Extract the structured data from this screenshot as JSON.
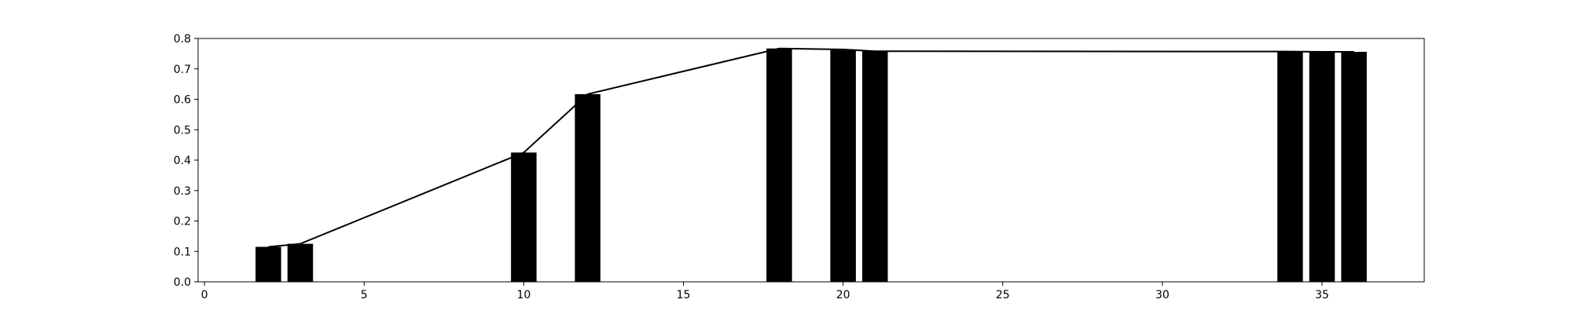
{
  "chart_data": {
    "type": "bar",
    "title": "",
    "xlabel": "",
    "ylabel": "",
    "xlim": [
      -0.2,
      38.2
    ],
    "ylim": [
      0.0,
      0.8
    ],
    "x_ticks": [
      0,
      5,
      10,
      15,
      20,
      25,
      30,
      35
    ],
    "y_ticks": [
      0.0,
      0.1,
      0.2,
      0.3,
      0.4,
      0.5,
      0.6,
      0.7,
      0.8
    ],
    "x_tick_labels": [
      "0",
      "5",
      "10",
      "15",
      "20",
      "25",
      "30",
      "35"
    ],
    "y_tick_labels": [
      "0.0",
      "0.1",
      "0.2",
      "0.3",
      "0.4",
      "0.5",
      "0.6",
      "0.7",
      "0.8"
    ],
    "grid": false,
    "bar_width": 0.8,
    "bars": [
      {
        "x": 2,
        "value": 0.115
      },
      {
        "x": 3,
        "value": 0.125
      },
      {
        "x": 10,
        "value": 0.425
      },
      {
        "x": 12,
        "value": 0.617
      },
      {
        "x": 18,
        "value": 0.767
      },
      {
        "x": 20,
        "value": 0.764
      },
      {
        "x": 21,
        "value": 0.758
      },
      {
        "x": 34,
        "value": 0.757
      },
      {
        "x": 35,
        "value": 0.756
      },
      {
        "x": 36,
        "value": 0.756
      }
    ],
    "line": {
      "x": [
        2,
        3,
        10,
        12,
        18,
        20,
        21,
        34,
        35,
        36
      ],
      "y": [
        0.115,
        0.125,
        0.425,
        0.617,
        0.767,
        0.764,
        0.758,
        0.757,
        0.756,
        0.756
      ]
    },
    "colors": {
      "bars": "#000000",
      "line": "#000000",
      "axes": "#000000"
    }
  }
}
